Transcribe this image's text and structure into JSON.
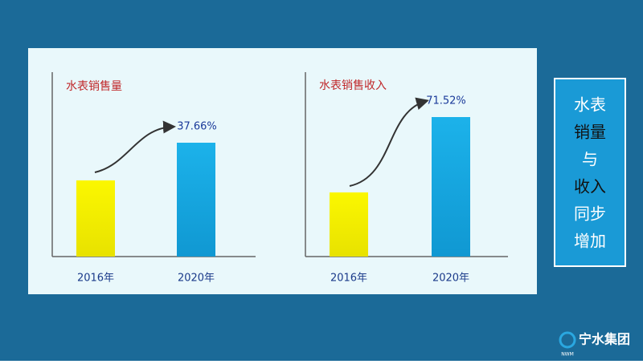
{
  "chart_data": [
    {
      "type": "bar",
      "title": "水表销售量",
      "categories": [
        "2016年",
        "2020年"
      ],
      "values": [
        95,
        142
      ],
      "colors": [
        "#f2ec00",
        "#16a6e0"
      ],
      "ylim": [
        0,
        200
      ],
      "annotation": "37.66%"
    },
    {
      "type": "bar",
      "title": "水表销售收入",
      "categories": [
        "2016年",
        "2020年"
      ],
      "values": [
        80,
        174
      ],
      "colors": [
        "#f2ec00",
        "#16a6e0"
      ],
      "ylim": [
        0,
        200
      ],
      "annotation": "71.52%"
    }
  ],
  "side_text": [
    "水表",
    "销量",
    "与",
    "收入",
    "同步",
    "增加"
  ],
  "logo": {
    "name": "宁水集团",
    "abbr": "NWM"
  }
}
